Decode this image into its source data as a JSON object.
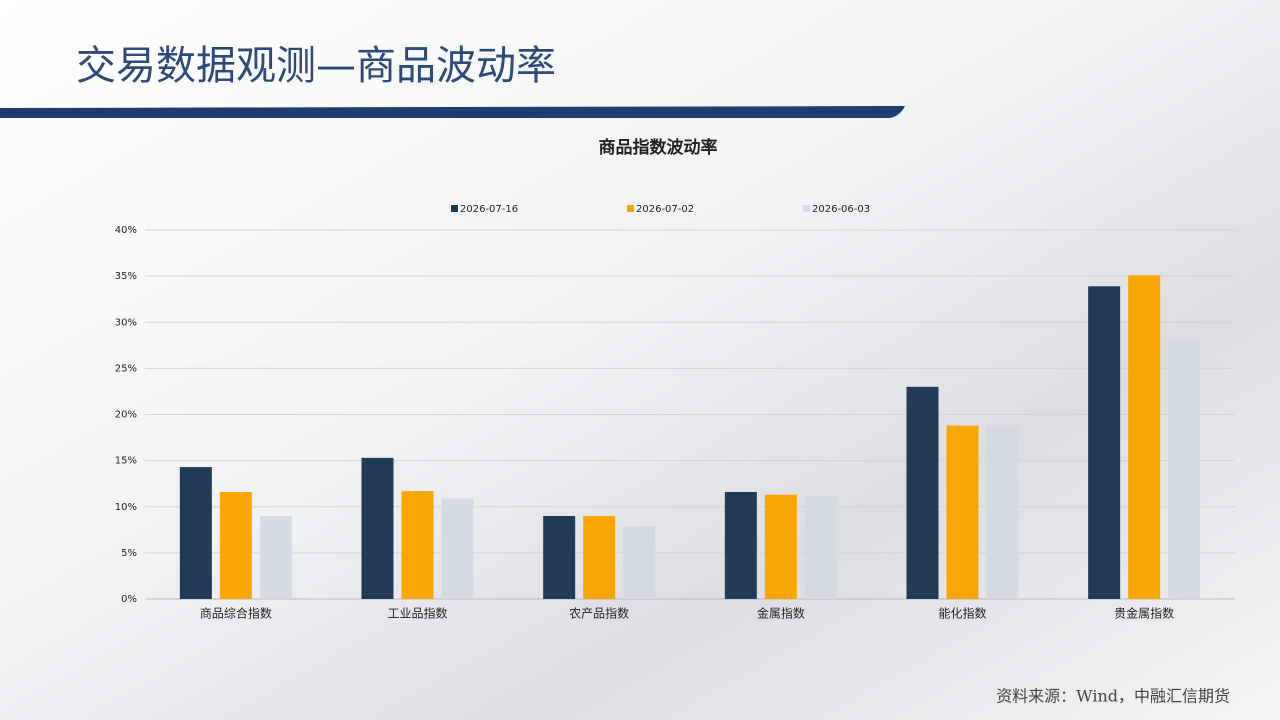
{
  "header": {
    "title": "交易数据观测—商品波动率"
  },
  "footer": {
    "source": "资料来源：Wind，中融汇信期货"
  },
  "chart_data": {
    "type": "bar",
    "title": "商品指数波动率",
    "categories": [
      "商品综合指数",
      "工业品指数",
      "农产品指数",
      "金属指数",
      "能化指数",
      "贵金属指数"
    ],
    "series": [
      {
        "name": "2026-07-16",
        "color": "#203a57",
        "values": [
          14.3,
          15.3,
          9.0,
          11.6,
          23.0,
          33.9
        ]
      },
      {
        "name": "2026-07-02",
        "color": "#f9a602",
        "values": [
          11.6,
          11.7,
          9.0,
          11.3,
          18.8,
          35.1
        ]
      },
      {
        "name": "2026-06-03",
        "color": "#d5dbe3",
        "values": [
          9.0,
          10.9,
          7.9,
          11.1,
          18.8,
          28.2
        ]
      }
    ],
    "ylim": [
      0,
      40
    ],
    "yticks": [
      {
        "value": 0,
        "label": "0%"
      },
      {
        "value": 5,
        "label": "5%"
      },
      {
        "value": 10,
        "label": "10%"
      },
      {
        "value": 15,
        "label": "15%"
      },
      {
        "value": 20,
        "label": "20%"
      },
      {
        "value": 25,
        "label": "25%"
      },
      {
        "value": 30,
        "label": "30%"
      },
      {
        "value": 35,
        "label": "35%"
      },
      {
        "value": 40,
        "label": "40%"
      }
    ],
    "grid": true,
    "legend": "top"
  }
}
